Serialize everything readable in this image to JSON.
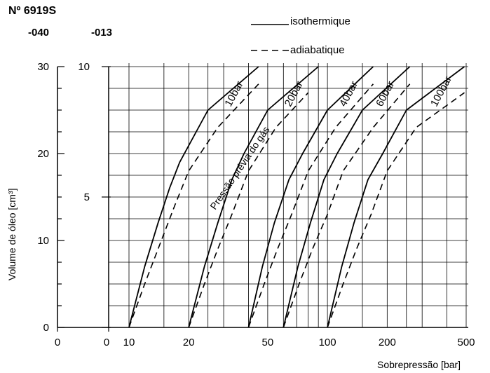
{
  "chart_data": {
    "type": "line",
    "product_code": "Nº 6919S",
    "variants": [
      "-040",
      "-013"
    ],
    "legend": [
      {
        "label": "isothermique",
        "style": "solid"
      },
      {
        "label": "adiabatique",
        "style": "dashed"
      }
    ],
    "ylabel": "Volume de óleo [cm³]",
    "xlabel": "Sobrepressão [bar]",
    "annotation": "Pressão prévia do gás",
    "axes": {
      "outer_y_ticks": [
        "0",
        "10",
        "20",
        "30"
      ],
      "outer_y_range": [
        0,
        30
      ],
      "inner_y_ticks": [
        "5",
        "10"
      ],
      "inner_y_range": [
        0,
        10
      ],
      "x_ticks_var040": [
        "0",
        "10",
        "20",
        "50",
        "100",
        "200",
        "500"
      ],
      "x_ticks_var013": [
        "0"
      ],
      "x_scale": "log",
      "x_range": [
        10,
        500
      ]
    },
    "grid": true,
    "series": [
      {
        "name": "10bar",
        "isothermique": [
          [
            10,
            0
          ],
          [
            12,
            7
          ],
          [
            14,
            12
          ],
          [
            16,
            16
          ],
          [
            18,
            19
          ],
          [
            25,
            25
          ],
          [
            45,
            30
          ]
        ],
        "adiabatique": [
          [
            10,
            0
          ],
          [
            12,
            5
          ],
          [
            14,
            9
          ],
          [
            17,
            14
          ],
          [
            20,
            18
          ],
          [
            28,
            23
          ],
          [
            45,
            28
          ]
        ]
      },
      {
        "name": "20bar",
        "isothermique": [
          [
            20,
            0
          ],
          [
            24,
            7
          ],
          [
            28,
            12
          ],
          [
            33,
            17
          ],
          [
            38,
            20
          ],
          [
            50,
            25
          ],
          [
            90,
            30
          ]
        ],
        "adiabatique": [
          [
            20,
            0
          ],
          [
            24,
            5
          ],
          [
            28,
            9
          ],
          [
            33,
            13
          ],
          [
            40,
            18
          ],
          [
            55,
            23
          ],
          [
            80,
            27
          ]
        ]
      },
      {
        "name": "40bar",
        "isothermique": [
          [
            40,
            0
          ],
          [
            47,
            7
          ],
          [
            54,
            12
          ],
          [
            64,
            17
          ],
          [
            75,
            20
          ],
          [
            100,
            25
          ],
          [
            170,
            30
          ]
        ],
        "adiabatique": [
          [
            40,
            0
          ],
          [
            48,
            5
          ],
          [
            56,
            9
          ],
          [
            66,
            13
          ],
          [
            80,
            18
          ],
          [
            110,
            23
          ],
          [
            170,
            28
          ]
        ]
      },
      {
        "name": "60bar",
        "isothermique": [
          [
            60,
            0
          ],
          [
            71,
            7
          ],
          [
            82,
            12
          ],
          [
            96,
            17
          ],
          [
            112,
            20
          ],
          [
            150,
            25
          ],
          [
            260,
            30
          ]
        ],
        "adiabatique": [
          [
            60,
            0
          ],
          [
            72,
            5
          ],
          [
            84,
            9
          ],
          [
            100,
            13
          ],
          [
            120,
            18
          ],
          [
            170,
            23
          ],
          [
            260,
            28
          ]
        ]
      },
      {
        "name": "100bar",
        "isothermique": [
          [
            100,
            0
          ],
          [
            118,
            7
          ],
          [
            136,
            12
          ],
          [
            160,
            17
          ],
          [
            190,
            20
          ],
          [
            250,
            25
          ],
          [
            490,
            30
          ]
        ],
        "adiabatique": [
          [
            100,
            0
          ],
          [
            120,
            5
          ],
          [
            140,
            9
          ],
          [
            166,
            13
          ],
          [
            200,
            18
          ],
          [
            280,
            23
          ],
          [
            490,
            27
          ]
        ]
      }
    ]
  }
}
